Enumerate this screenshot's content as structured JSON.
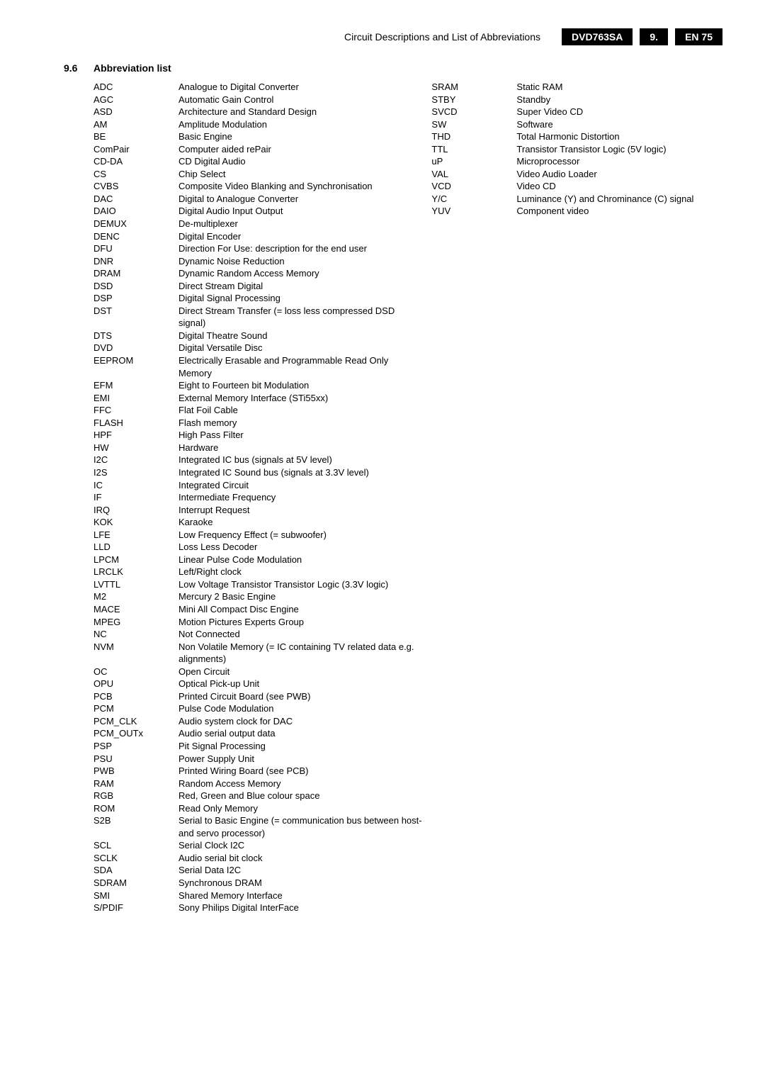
{
  "header": {
    "title": "Circuit Descriptions and List of Abbreviations",
    "model": "DVD763SA",
    "chapter": "9.",
    "page": "EN 75"
  },
  "section": {
    "number": "9.6",
    "title": "Abbreviation list"
  },
  "col1": [
    {
      "a": "ADC",
      "d": "Analogue to Digital Converter"
    },
    {
      "a": "AGC",
      "d": "Automatic Gain Control"
    },
    {
      "a": "ASD",
      "d": "Architecture and Standard Design"
    },
    {
      "a": "AM",
      "d": "Amplitude Modulation"
    },
    {
      "a": "BE",
      "d": "Basic Engine"
    },
    {
      "a": "ComPair",
      "d": "Computer aided rePair"
    },
    {
      "a": "CD-DA",
      "d": "CD Digital Audio"
    },
    {
      "a": "CS",
      "d": "Chip Select"
    },
    {
      "a": "CVBS",
      "d": "Composite Video Blanking and Synchronisation"
    },
    {
      "a": "DAC",
      "d": "Digital to Analogue Converter"
    },
    {
      "a": "DAIO",
      "d": "Digital Audio Input Output"
    },
    {
      "a": "DEMUX",
      "d": "De-multiplexer"
    },
    {
      "a": "DENC",
      "d": "Digital Encoder"
    },
    {
      "a": "DFU",
      "d": "Direction For Use: description for the end user"
    },
    {
      "a": "DNR",
      "d": "Dynamic Noise Reduction"
    },
    {
      "a": "DRAM",
      "d": "Dynamic Random Access Memory"
    },
    {
      "a": "DSD",
      "d": "Direct Stream Digital"
    },
    {
      "a": "DSP",
      "d": "Digital Signal Processing"
    },
    {
      "a": "DST",
      "d": "Direct Stream Transfer (= loss less compressed DSD signal)"
    },
    {
      "a": "DTS",
      "d": "Digital Theatre Sound"
    },
    {
      "a": "DVD",
      "d": "Digital Versatile Disc"
    },
    {
      "a": "EEPROM",
      "d": "Electrically Erasable and Programmable Read Only Memory"
    },
    {
      "a": "EFM",
      "d": "Eight to Fourteen bit Modulation"
    },
    {
      "a": "EMI",
      "d": "External Memory Interface (STi55xx)"
    },
    {
      "a": "FFC",
      "d": "Flat Foil Cable"
    },
    {
      "a": "FLASH",
      "d": "Flash memory"
    },
    {
      "a": "HPF",
      "d": "High Pass Filter"
    },
    {
      "a": "HW",
      "d": "Hardware"
    },
    {
      "a": "I2C",
      "d": "Integrated IC bus (signals at 5V level)"
    },
    {
      "a": "I2S",
      "d": "Integrated IC Sound bus (signals at 3.3V level)"
    },
    {
      "a": "IC",
      "d": "Integrated Circuit"
    },
    {
      "a": "IF",
      "d": "Intermediate Frequency"
    },
    {
      "a": "IRQ",
      "d": "Interrupt Request"
    },
    {
      "a": "KOK",
      "d": "Karaoke"
    },
    {
      "a": "LFE",
      "d": "Low Frequency Effect (= subwoofer)"
    },
    {
      "a": "LLD",
      "d": "Loss Less Decoder"
    },
    {
      "a": "LPCM",
      "d": "Linear Pulse Code Modulation"
    },
    {
      "a": "LRCLK",
      "d": "Left/Right clock"
    },
    {
      "a": "LVTTL",
      "d": "Low Voltage Transistor Transistor Logic (3.3V logic)"
    },
    {
      "a": "M2",
      "d": "Mercury 2 Basic Engine"
    },
    {
      "a": "MACE",
      "d": "Mini All Compact Disc Engine"
    },
    {
      "a": "MPEG",
      "d": "Motion Pictures Experts Group"
    },
    {
      "a": "NC",
      "d": "Not Connected"
    },
    {
      "a": "NVM",
      "d": "Non Volatile Memory (= IC containing TV related data e.g. alignments)"
    },
    {
      "a": "OC",
      "d": "Open Circuit"
    },
    {
      "a": "OPU",
      "d": "Optical Pick-up Unit"
    },
    {
      "a": "PCB",
      "d": "Printed Circuit Board (see PWB)"
    },
    {
      "a": "PCM",
      "d": "Pulse Code Modulation"
    },
    {
      "a": "PCM_CLK",
      "d": "Audio system clock for DAC"
    },
    {
      "a": "PCM_OUTx",
      "d": "Audio serial output data"
    },
    {
      "a": "PSP",
      "d": "Pit Signal Processing"
    },
    {
      "a": "PSU",
      "d": "Power Supply Unit"
    },
    {
      "a": "PWB",
      "d": "Printed Wiring Board (see PCB)"
    },
    {
      "a": "RAM",
      "d": "Random Access Memory"
    },
    {
      "a": "RGB",
      "d": "Red, Green and Blue colour space"
    },
    {
      "a": "ROM",
      "d": "Read Only Memory"
    },
    {
      "a": "S2B",
      "d": "Serial to Basic Engine (= communication bus between host- and servo processor)"
    },
    {
      "a": "SCL",
      "d": "Serial Clock I2C"
    },
    {
      "a": "SCLK",
      "d": "Audio serial bit clock"
    },
    {
      "a": "SDA",
      "d": "Serial Data I2C"
    },
    {
      "a": "SDRAM",
      "d": "Synchronous DRAM"
    },
    {
      "a": "SMI",
      "d": "Shared Memory Interface"
    },
    {
      "a": "S/PDIF",
      "d": "Sony Philips Digital InterFace"
    }
  ],
  "col2": [
    {
      "a": "SRAM",
      "d": "Static RAM"
    },
    {
      "a": "STBY",
      "d": "Standby"
    },
    {
      "a": "SVCD",
      "d": "Super Video CD"
    },
    {
      "a": "SW",
      "d": "Software"
    },
    {
      "a": "THD",
      "d": "Total Harmonic Distortion"
    },
    {
      "a": "TTL",
      "d": "Transistor Transistor Logic (5V logic)"
    },
    {
      "a": "uP",
      "d": "Microprocessor"
    },
    {
      "a": "VAL",
      "d": "Video Audio Loader"
    },
    {
      "a": "VCD",
      "d": "Video CD"
    },
    {
      "a": "Y/C",
      "d": "Luminance (Y) and Chrominance (C) signal"
    },
    {
      "a": "YUV",
      "d": "Component video"
    }
  ]
}
